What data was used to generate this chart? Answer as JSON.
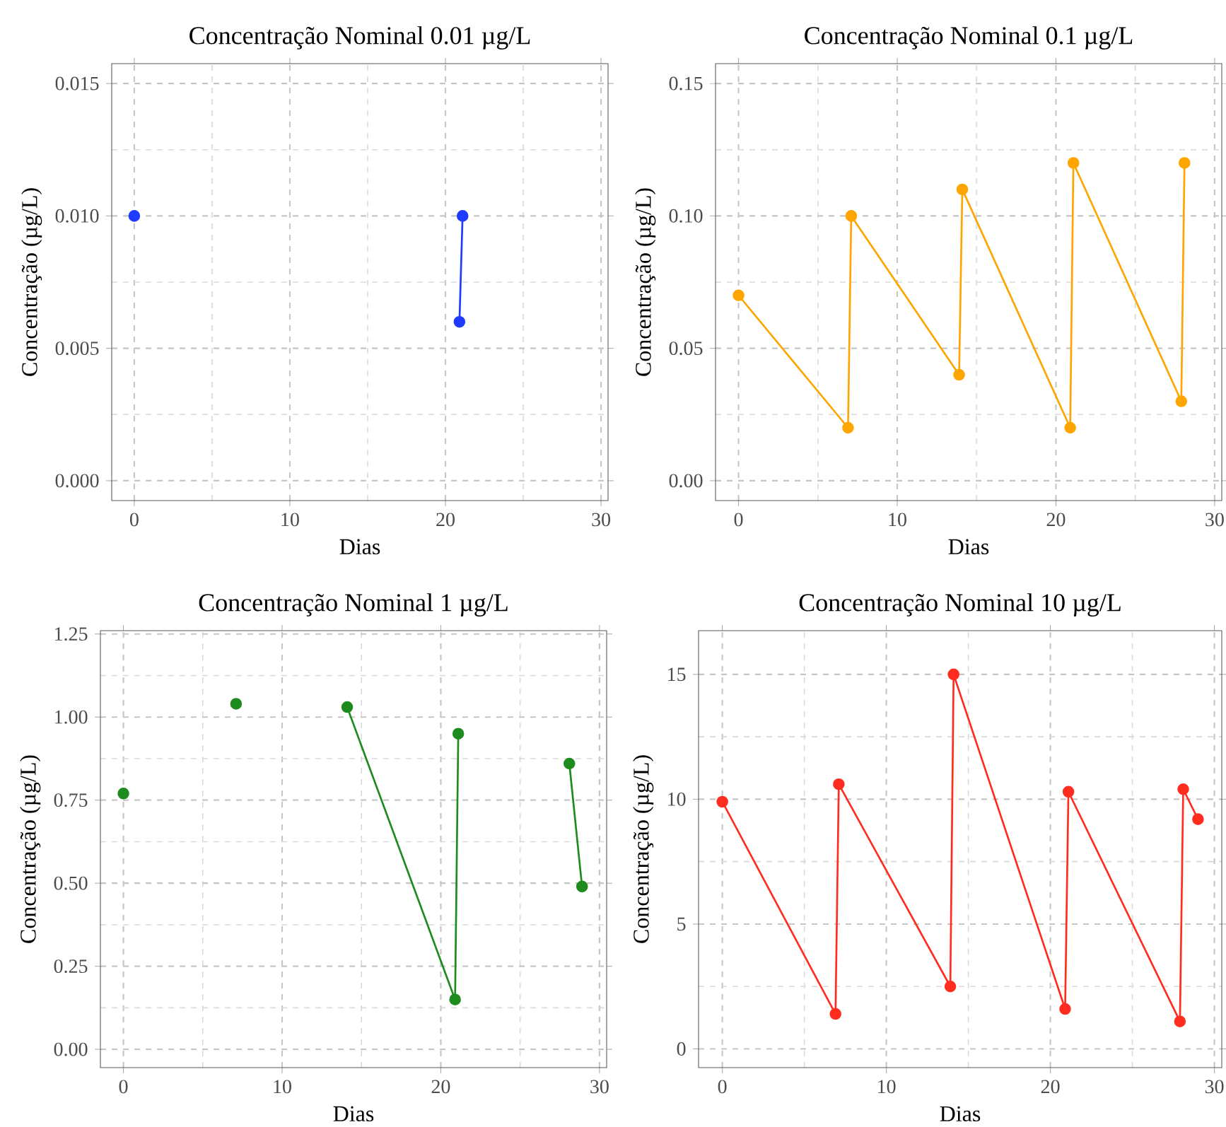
{
  "chart_data": [
    {
      "type": "line",
      "title": "Concentração Nominal 0.01 µg/L",
      "xlabel": "Dias",
      "ylabel": "Concentração (µg/L)",
      "xlim": [
        -1.45,
        30.45
      ],
      "ylim": [
        -0.00075,
        0.01575
      ],
      "xticks": [
        0,
        10,
        20,
        30
      ],
      "yticks": [
        {
          "value": 0,
          "label": "0.000"
        },
        0.005,
        {
          "value": 0.01,
          "label": "0.010"
        },
        0.015
      ],
      "grid": true,
      "marker": "circle",
      "line_style": "solid",
      "series": [
        {
          "color": "#1f3bff",
          "x": [
            0
          ],
          "values": [
            0.01
          ]
        },
        {
          "color": "#1f3bff",
          "x": [
            20.9,
            21.1
          ],
          "values": [
            0.006,
            0.01
          ]
        }
      ]
    },
    {
      "type": "line",
      "title": "Concentração Nominal 0.1 µg/L",
      "xlabel": "Dias",
      "ylabel": "Concentração (µg/L)",
      "xlim": [
        -1.45,
        30.45
      ],
      "ylim": [
        -0.0075,
        0.1575
      ],
      "xticks": [
        0,
        10,
        20,
        30
      ],
      "yticks": [
        {
          "value": 0,
          "label": "0.00"
        },
        0.05,
        {
          "value": 0.1,
          "label": "0.10"
        },
        0.15
      ],
      "grid": true,
      "marker": "circle",
      "line_style": "solid",
      "series": [
        {
          "color": "#ffa500",
          "x": [
            0,
            6.9,
            7.1,
            13.9,
            14.1,
            20.9,
            21.1,
            27.9,
            28.1
          ],
          "values": [
            0.07,
            0.02,
            0.1,
            0.04,
            0.11,
            0.02,
            0.12,
            0.03,
            0.12
          ]
        }
      ]
    },
    {
      "type": "line",
      "title": "Concentração Nominal 1 µg/L",
      "xlabel": "Dias",
      "ylabel": "Concentração (µg/L)",
      "xlim": [
        -1.45,
        30.45
      ],
      "ylim": [
        -0.055,
        1.26
      ],
      "xticks": [
        0,
        10,
        20,
        30
      ],
      "yticks": [
        {
          "value": 0,
          "label": "0.00"
        },
        0.25,
        {
          "value": 0.5,
          "label": "0.50"
        },
        0.75,
        {
          "value": 1,
          "label": "1.00"
        },
        1.25
      ],
      "grid": true,
      "marker": "circle",
      "line_style": "solid",
      "series": [
        {
          "color": "#1e8b1e",
          "x": [
            0
          ],
          "values": [
            0.77
          ]
        },
        {
          "color": "#1e8b1e",
          "x": [
            7.1
          ],
          "values": [
            1.04
          ]
        },
        {
          "color": "#1e8b1e",
          "x": [
            14.1,
            20.9,
            21.1
          ],
          "values": [
            1.03,
            0.15,
            0.95
          ]
        },
        {
          "color": "#1e8b1e",
          "x": [
            28.1,
            28.9
          ],
          "values": [
            0.86,
            0.49
          ]
        }
      ]
    },
    {
      "type": "line",
      "title": "Concentração Nominal 10 µg/L",
      "xlabel": "Dias",
      "ylabel": "Concentração (µg/L)",
      "xlim": [
        -1.45,
        30.45
      ],
      "ylim": [
        -0.75,
        16.75
      ],
      "xticks": [
        0,
        10,
        20,
        30
      ],
      "yticks": [
        0,
        5,
        10,
        15
      ],
      "grid": true,
      "marker": "circle",
      "line_style": "solid",
      "series": [
        {
          "color": "#ff2d1f",
          "x": [
            0,
            6.9,
            7.1,
            13.9,
            14.1,
            20.9,
            21.1,
            27.9,
            28.1,
            29.0
          ],
          "values": [
            9.9,
            1.4,
            10.6,
            2.5,
            15.0,
            1.6,
            10.3,
            1.1,
            10.4,
            9.2
          ]
        }
      ]
    }
  ]
}
